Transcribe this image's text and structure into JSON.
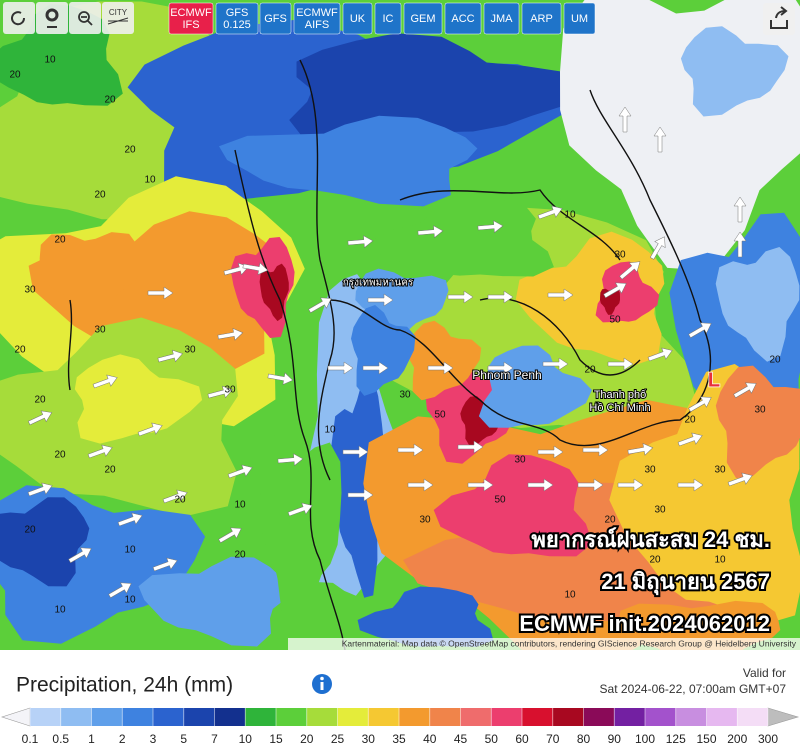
{
  "toolbar": {
    "city_label": "CITY",
    "models": [
      {
        "lines": [
          "ECMWF",
          "IFS"
        ],
        "active": true
      },
      {
        "lines": [
          "GFS",
          "0.125"
        ],
        "active": false
      },
      {
        "lines": [
          "GFS"
        ],
        "active": false
      },
      {
        "lines": [
          "ECMWF",
          "AIFS"
        ],
        "active": false
      },
      {
        "lines": [
          "UK"
        ],
        "active": false
      },
      {
        "lines": [
          "IC"
        ],
        "active": false
      },
      {
        "lines": [
          "GEM"
        ],
        "active": false
      },
      {
        "lines": [
          "ACC"
        ],
        "active": false
      },
      {
        "lines": [
          "JMA"
        ],
        "active": false
      },
      {
        "lines": [
          "ARP"
        ],
        "active": false
      },
      {
        "lines": [
          "UM"
        ],
        "active": false
      }
    ]
  },
  "map": {
    "overlay_lines": [
      "พยากรณ์ฝนสะสม 24 ชม.",
      "21 มิถุนายน 2567",
      "ECMWF init.2024062012"
    ],
    "attribution": "Kartenmaterial: Map data © OpenStreetMap contributors, rendering GIScience Research Group @ Heidelberg University",
    "places": [
      "Phnom Penh",
      "Thanh phố",
      "Hồ Chí Minh",
      "กรุงเทพมหานคร",
      "L"
    ],
    "contour_labels": [
      "20",
      "10",
      "20",
      "20",
      "20",
      "10",
      "20",
      "30",
      "30",
      "20",
      "30",
      "20",
      "30",
      "20",
      "20",
      "20",
      "10",
      "20",
      "10",
      "20",
      "10",
      "10",
      "30",
      "50",
      "50",
      "30",
      "30",
      "20",
      "10",
      "30",
      "50",
      "30",
      "20",
      "10",
      "20",
      "30",
      "10",
      "20",
      "30",
      "30",
      "10",
      "20"
    ]
  },
  "legend": {
    "title": "Precipitation, 24h (mm)",
    "valid_label": "Valid for",
    "valid_time": "Sat 2024-06-22, 07:00am GMT+07",
    "ticks": [
      0.1,
      0.5,
      1,
      2,
      3,
      5,
      7,
      10,
      15,
      20,
      25,
      30,
      35,
      40,
      45,
      50,
      60,
      70,
      80,
      90,
      100,
      125,
      150,
      200,
      300
    ],
    "colors": [
      "#b7d2f7",
      "#8fbdf2",
      "#5f9fea",
      "#3e82e0",
      "#2b63cf",
      "#1b44ad",
      "#13308e",
      "#2fb43a",
      "#5ccf3a",
      "#a6dc3a",
      "#e4ec3a",
      "#f5c832",
      "#f39a2e",
      "#f0844a",
      "#ef6c6c",
      "#ec3e6e",
      "#d8102e",
      "#a80820",
      "#8a0a58",
      "#7320a2",
      "#a352cc",
      "#c88ee0",
      "#e6b8f0",
      "#f4ddf6"
    ],
    "under_color": "#f4f4f8",
    "over_color": "#bdbdbd"
  }
}
